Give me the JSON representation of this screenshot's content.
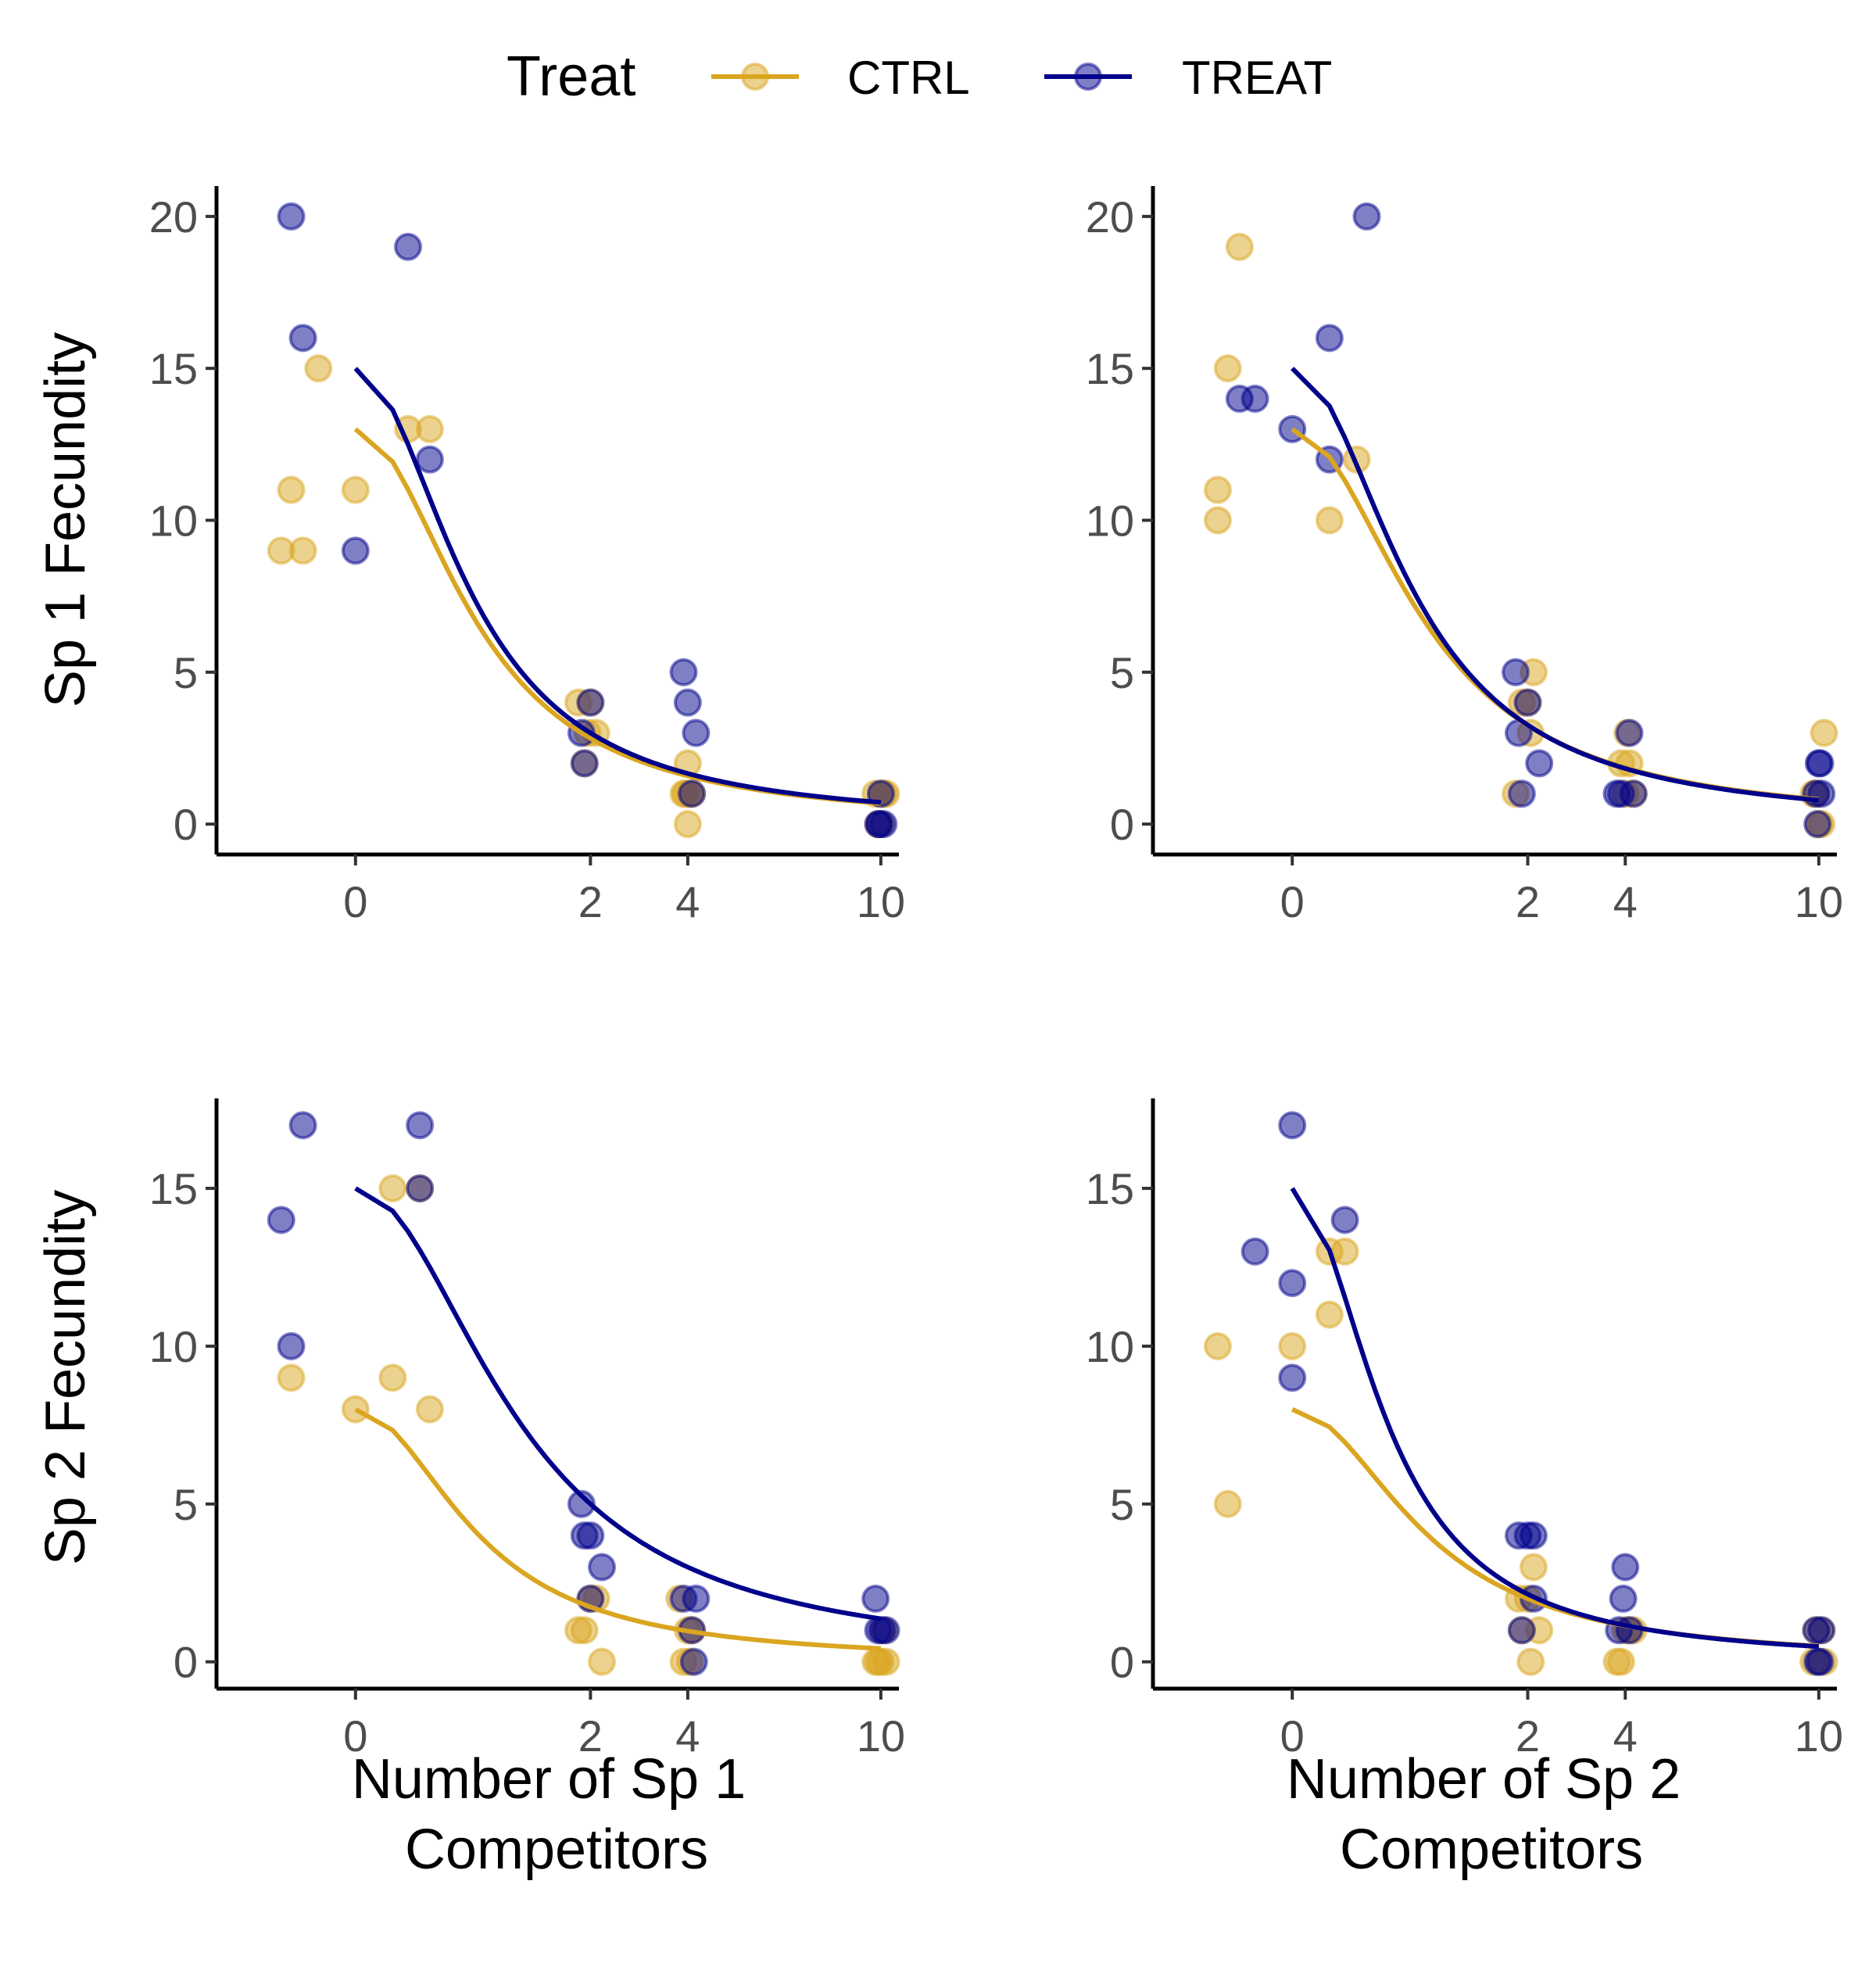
{
  "legend": {
    "title": "Treat",
    "entries": [
      {
        "label": "CTRL",
        "color": "#DAA520"
      },
      {
        "label": "TREAT",
        "color": "#00008B"
      }
    ]
  },
  "row_labels": [
    "Sp 1 Fecundity",
    "Sp 2 Fecundity"
  ],
  "col_labels": [
    "Number of Sp 1 Competitors",
    "Number of Sp 2 Competitors"
  ],
  "x_ticks": [
    0,
    2,
    4,
    10
  ],
  "chart_data": [
    {
      "type": "scatter",
      "ylabel": "Sp 1 Fecundity",
      "xlabel": "",
      "xlim": [
        -0.7,
        10.7
      ],
      "ylim": [
        -1,
        21
      ],
      "y_ticks": [
        0,
        5,
        10,
        15,
        20
      ],
      "grid": false,
      "series": [
        {
          "name": "CTRL",
          "color": "#DAA520",
          "points": [
            [
              -0.2,
              9
            ],
            [
              -0.15,
              11
            ],
            [
              0,
              11
            ],
            [
              -0.05,
              15
            ],
            [
              0.2,
              13
            ],
            [
              0.1,
              13
            ],
            [
              -0.1,
              9
            ],
            [
              1.8,
              4
            ],
            [
              2.1,
              3
            ],
            [
              1.9,
              2
            ],
            [
              2.0,
              4
            ],
            [
              1.95,
              3
            ],
            [
              3.9,
              1
            ],
            [
              4.0,
              2
            ],
            [
              4.05,
              1
            ],
            [
              3.95,
              1
            ],
            [
              4.1,
              1
            ],
            [
              4.0,
              0
            ],
            [
              9.8,
              1
            ],
            [
              10.2,
              1
            ],
            [
              10.0,
              0
            ],
            [
              9.9,
              0
            ],
            [
              10.1,
              1
            ],
            [
              10.0,
              1
            ]
          ],
          "curve": {
            "a": 13,
            "b": 1.8
          }
        },
        {
          "name": "TREAT",
          "color": "#00008B",
          "points": [
            [
              -0.15,
              20
            ],
            [
              0.1,
              19
            ],
            [
              -0.1,
              16
            ],
            [
              0.2,
              12
            ],
            [
              0,
              9
            ],
            [
              1.85,
              3
            ],
            [
              2.0,
              4
            ],
            [
              1.9,
              2
            ],
            [
              3.9,
              5
            ],
            [
              4.0,
              4
            ],
            [
              4.2,
              3
            ],
            [
              4.1,
              1
            ],
            [
              9.9,
              0
            ],
            [
              10.1,
              0
            ],
            [
              10.0,
              1
            ],
            [
              9.95,
              0
            ]
          ],
          "curve": {
            "a": 15,
            "b": 2.0
          }
        }
      ]
    },
    {
      "type": "scatter",
      "ylabel": "",
      "xlabel": "",
      "xlim": [
        -0.7,
        10.7
      ],
      "ylim": [
        -1,
        21
      ],
      "y_ticks": [
        0,
        5,
        10,
        15,
        20
      ],
      "grid": false,
      "series": [
        {
          "name": "CTRL",
          "color": "#DAA520",
          "points": [
            [
              -0.1,
              19
            ],
            [
              -0.15,
              15
            ],
            [
              -0.2,
              11
            ],
            [
              -0.2,
              10
            ],
            [
              0.05,
              10
            ],
            [
              0.15,
              12
            ],
            [
              1.9,
              4
            ],
            [
              2.1,
              5
            ],
            [
              2.0,
              4
            ],
            [
              1.8,
              1
            ],
            [
              2.05,
              3
            ],
            [
              3.9,
              2
            ],
            [
              4.1,
              2
            ],
            [
              4.0,
              1
            ],
            [
              4.2,
              1
            ],
            [
              4.05,
              3
            ],
            [
              9.8,
              1
            ],
            [
              10.2,
              3
            ],
            [
              10.1,
              0
            ],
            [
              9.9,
              1
            ],
            [
              10.0,
              0
            ]
          ],
          "curve": {
            "a": 13,
            "b": 1.5
          }
        },
        {
          "name": "TREAT",
          "color": "#00008B",
          "points": [
            [
              0.2,
              20
            ],
            [
              0.05,
              16
            ],
            [
              -0.05,
              14
            ],
            [
              0,
              13
            ],
            [
              0.05,
              12
            ],
            [
              -0.1,
              14
            ],
            [
              1.8,
              5
            ],
            [
              1.85,
              3
            ],
            [
              2.2,
              2
            ],
            [
              1.9,
              1
            ],
            [
              2.0,
              4
            ],
            [
              3.8,
              1
            ],
            [
              3.9,
              1
            ],
            [
              4.1,
              3
            ],
            [
              4.2,
              1
            ],
            [
              9.9,
              1
            ],
            [
              10.0,
              2
            ],
            [
              10.05,
              2
            ],
            [
              9.95,
              0
            ],
            [
              10.1,
              1
            ]
          ],
          "curve": {
            "a": 15,
            "b": 1.8
          }
        }
      ]
    },
    {
      "type": "scatter",
      "ylabel": "Sp 2 Fecundity",
      "xlabel": "Number of Sp 1 Competitors",
      "xlim": [
        -0.7,
        10.7
      ],
      "ylim": [
        -0.85,
        17.85
      ],
      "y_ticks": [
        0,
        5,
        10,
        15
      ],
      "grid": false,
      "series": [
        {
          "name": "CTRL",
          "color": "#DAA520",
          "points": [
            [
              -0.15,
              9
            ],
            [
              0.05,
              9
            ],
            [
              0,
              8
            ],
            [
              0.2,
              8
            ],
            [
              0.05,
              15
            ],
            [
              0.15,
              15
            ],
            [
              1.8,
              1
            ],
            [
              2.0,
              2
            ],
            [
              1.9,
              1
            ],
            [
              2.2,
              0
            ],
            [
              2.1,
              2
            ],
            [
              3.8,
              2
            ],
            [
              3.9,
              0
            ],
            [
              4.0,
              1
            ],
            [
              4.1,
              1
            ],
            [
              4.05,
              0
            ],
            [
              9.8,
              0
            ],
            [
              10.0,
              0
            ],
            [
              10.2,
              0
            ],
            [
              10.1,
              1
            ],
            [
              9.9,
              0
            ]
          ],
          "curve": {
            "a": 8,
            "b": 1.8
          }
        },
        {
          "name": "TREAT",
          "color": "#00008B",
          "points": [
            [
              -0.2,
              14
            ],
            [
              -0.1,
              17
            ],
            [
              0.15,
              17
            ],
            [
              0.15,
              15
            ],
            [
              -0.15,
              10
            ],
            [
              1.85,
              5
            ],
            [
              1.9,
              4
            ],
            [
              2.0,
              4
            ],
            [
              2.2,
              3
            ],
            [
              2.0,
              2
            ],
            [
              3.9,
              2
            ],
            [
              4.2,
              2
            ],
            [
              4.1,
              1
            ],
            [
              4.15,
              0
            ],
            [
              9.8,
              2
            ],
            [
              9.9,
              1
            ],
            [
              10.2,
              1
            ],
            [
              10.05,
              1
            ]
          ],
          "curve": {
            "a": 15,
            "b": 1.0
          }
        }
      ]
    },
    {
      "type": "scatter",
      "ylabel": "",
      "xlabel": "Number of Sp 2 Competitors",
      "xlim": [
        -0.7,
        10.7
      ],
      "ylim": [
        -0.85,
        17.85
      ],
      "y_ticks": [
        0,
        5,
        10,
        15
      ],
      "grid": false,
      "series": [
        {
          "name": "CTRL",
          "color": "#DAA520",
          "points": [
            [
              -0.15,
              5
            ],
            [
              -0.2,
              10
            ],
            [
              0,
              10
            ],
            [
              0.05,
              11
            ],
            [
              0.1,
              13
            ],
            [
              0.05,
              13
            ],
            [
              1.9,
              1
            ],
            [
              2.1,
              3
            ],
            [
              2.0,
              2
            ],
            [
              2.05,
              0
            ],
            [
              2.2,
              1
            ],
            [
              1.85,
              2
            ],
            [
              3.8,
              0
            ],
            [
              3.9,
              0
            ],
            [
              4.1,
              1
            ],
            [
              4.2,
              1
            ],
            [
              4.0,
              1
            ],
            [
              9.8,
              0
            ],
            [
              10.0,
              0
            ],
            [
              10.2,
              0
            ],
            [
              10.1,
              1
            ],
            [
              9.9,
              1
            ]
          ],
          "curve": {
            "a": 8,
            "b": 1.5
          }
        },
        {
          "name": "TREAT",
          "color": "#00008B",
          "points": [
            [
              0,
              17
            ],
            [
              0.1,
              14
            ],
            [
              -0.05,
              13
            ],
            [
              0,
              12
            ],
            [
              0,
              9
            ],
            [
              1.85,
              4
            ],
            [
              2.1,
              4
            ],
            [
              2.0,
              4
            ],
            [
              1.9,
              1
            ],
            [
              2.1,
              2
            ],
            [
              4.0,
              3
            ],
            [
              3.95,
              2
            ],
            [
              3.85,
              1
            ],
            [
              4.1,
              1
            ],
            [
              9.9,
              1
            ],
            [
              10.1,
              1
            ],
            [
              10.05,
              0
            ],
            [
              9.95,
              0
            ]
          ],
          "curve": {
            "a": 15,
            "b": 3.0
          }
        }
      ]
    }
  ]
}
